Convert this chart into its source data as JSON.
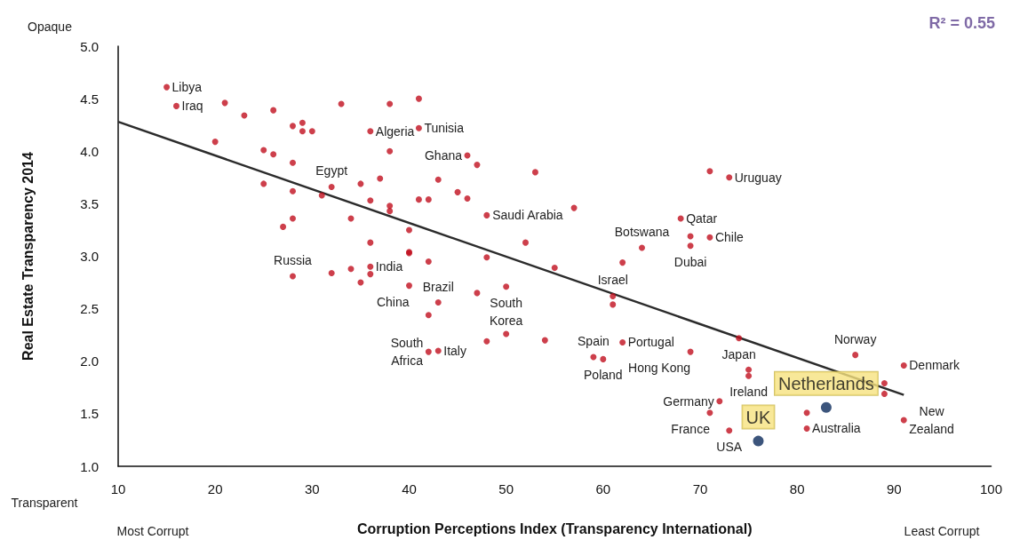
{
  "chart_data": {
    "type": "scatter",
    "xlabel": "Corruption Perceptions Index (Transparency International)",
    "ylabel": "Real Estate Transparency 2014",
    "xlim": [
      10,
      100
    ],
    "xticks": [
      10,
      20,
      30,
      40,
      50,
      60,
      70,
      80,
      90,
      100
    ],
    "ylim": [
      1,
      5
    ],
    "yticks": [
      {
        "value": 1,
        "label": "1.0"
      },
      {
        "value": 1.5,
        "label": "1.5"
      },
      {
        "value": 2,
        "label": "2.0"
      },
      {
        "value": 2.5,
        "label": "2.5"
      },
      {
        "value": 3,
        "label": "3.0"
      },
      {
        "value": 3.5,
        "label": "3.5"
      },
      {
        "value": 4,
        "label": "4.0"
      },
      {
        "value": 4.5,
        "label": "4.5"
      },
      {
        "value": 5,
        "label": "5.0"
      }
    ],
    "marker": "circle",
    "series": [
      {
        "color": "#c00f1e",
        "x": [
          15,
          16,
          21,
          23,
          26,
          28,
          29,
          29,
          30,
          33,
          38,
          41,
          41,
          36,
          38,
          20,
          25,
          26,
          28,
          25,
          28,
          31,
          32,
          35,
          37,
          43,
          36,
          38,
          38,
          41,
          42,
          28,
          27,
          34,
          40,
          36,
          40,
          46,
          47,
          53,
          45,
          46,
          48,
          57,
          71,
          73,
          68,
          69,
          71,
          69,
          64,
          52,
          28,
          32,
          34,
          36,
          36,
          35,
          40,
          42,
          40,
          43,
          42,
          42,
          43,
          48,
          55,
          50,
          47,
          62,
          61,
          61,
          48,
          50,
          54,
          59,
          60,
          62,
          69,
          74,
          75,
          75,
          72,
          71,
          73,
          86,
          91,
          89,
          89,
          81,
          81,
          91
        ],
        "values": [
          4.61,
          4.43,
          4.46,
          4.34,
          4.39,
          4.24,
          4.27,
          4.19,
          4.19,
          4.45,
          4.45,
          4.5,
          4.22,
          4.19,
          4.0,
          4.09,
          4.01,
          3.97,
          3.89,
          3.69,
          3.62,
          3.58,
          3.66,
          3.69,
          3.74,
          3.73,
          3.53,
          3.48,
          3.43,
          3.54,
          3.54,
          3.36,
          3.28,
          3.36,
          3.25,
          3.13,
          3.04,
          3.96,
          3.87,
          3.8,
          3.61,
          3.55,
          3.39,
          3.46,
          3.81,
          3.75,
          3.36,
          3.19,
          3.18,
          3.1,
          3.08,
          3.13,
          2.81,
          2.84,
          2.88,
          2.9,
          2.83,
          2.75,
          2.72,
          2.95,
          3.03,
          2.56,
          2.44,
          2.09,
          2.1,
          2.99,
          2.89,
          2.71,
          2.65,
          2.94,
          2.62,
          2.54,
          2.19,
          2.26,
          2.2,
          2.04,
          2.02,
          2.18,
          2.09,
          2.22,
          1.92,
          1.86,
          1.62,
          1.51,
          1.34,
          2.06,
          1.96,
          1.79,
          1.69,
          1.51,
          1.36,
          1.44
        ]
      },
      {
        "color": "#0b2a5b",
        "x": [
          83,
          76
        ],
        "values": [
          1.56,
          1.24
        ],
        "value_labels": [
          "Netherlands",
          "UK"
        ]
      },
      {
        "type": "line",
        "color": "#2b2b2b",
        "marker": "none",
        "x": [
          10,
          91
        ],
        "values": [
          4.28,
          1.68
        ]
      }
    ],
    "annotations": [
      "Opaque",
      "Transparent",
      "Most Corrupt",
      "Least Corrupt",
      "R² = 0.55",
      {
        "text": "Libya",
        "x": 15,
        "y": 4.61
      },
      {
        "text": "Iraq",
        "x": 16,
        "y": 4.43
      },
      {
        "text": "Algeria",
        "x": 36,
        "y": 4.19
      },
      {
        "text": "Tunisia",
        "x": 41,
        "y": 4.22
      },
      {
        "text": "Ghana",
        "x": 46,
        "y": 3.96
      },
      {
        "text": "Egypt",
        "x": 32,
        "y": 3.66
      },
      {
        "text": "Saudi Arabia",
        "x": 48,
        "y": 3.39
      },
      {
        "text": "Uruguay",
        "x": 73,
        "y": 3.75
      },
      {
        "text": "Qatar",
        "x": 68,
        "y": 3.36
      },
      {
        "text": "Botswana",
        "x": 64,
        "y": 3.08
      },
      {
        "text": "Chile",
        "x": 71,
        "y": 3.18
      },
      {
        "text": "Dubai",
        "x": 69,
        "y": 3.1
      },
      {
        "text": "Russia",
        "x": 28,
        "y": 2.81
      },
      {
        "text": "India",
        "x": 36,
        "y": 2.9
      },
      {
        "text": "Brazil",
        "x": 43,
        "y": 2.56
      },
      {
        "text": "South\nKorea",
        "x": 50,
        "y": 2.71
      },
      {
        "text": "China",
        "x": 40,
        "y": 2.72
      },
      {
        "text": "Israel",
        "x": 61,
        "y": 2.62
      },
      {
        "text": "Japan",
        "x": 74,
        "y": 2.22
      },
      {
        "text": "Spain",
        "x": 59,
        "y": 2.04
      },
      {
        "text": "Portugal",
        "x": 62,
        "y": 2.18
      },
      {
        "text": "Norway",
        "x": 86,
        "y": 2.06
      },
      {
        "text": "Italy",
        "x": 43,
        "y": 2.1
      },
      {
        "text": "Hong Kong",
        "x": 69,
        "y": 2.09
      },
      {
        "text": "South\nAfrica",
        "x": 42,
        "y": 2.09
      },
      {
        "text": "Poland",
        "x": 60,
        "y": 2.02
      },
      {
        "text": "Denmark",
        "x": 91,
        "y": 1.96
      },
      {
        "text": "Ireland",
        "x": 75,
        "y": 1.86
      },
      {
        "text": "Germany",
        "x": 72,
        "y": 1.62
      },
      {
        "text": "France",
        "x": 71,
        "y": 1.51
      },
      {
        "text": "New\nZealand",
        "x": 91,
        "y": 1.44
      },
      {
        "text": "Australia",
        "x": 81,
        "y": 1.36
      },
      {
        "text": "USA",
        "x": 73,
        "y": 1.34
      }
    ]
  }
}
